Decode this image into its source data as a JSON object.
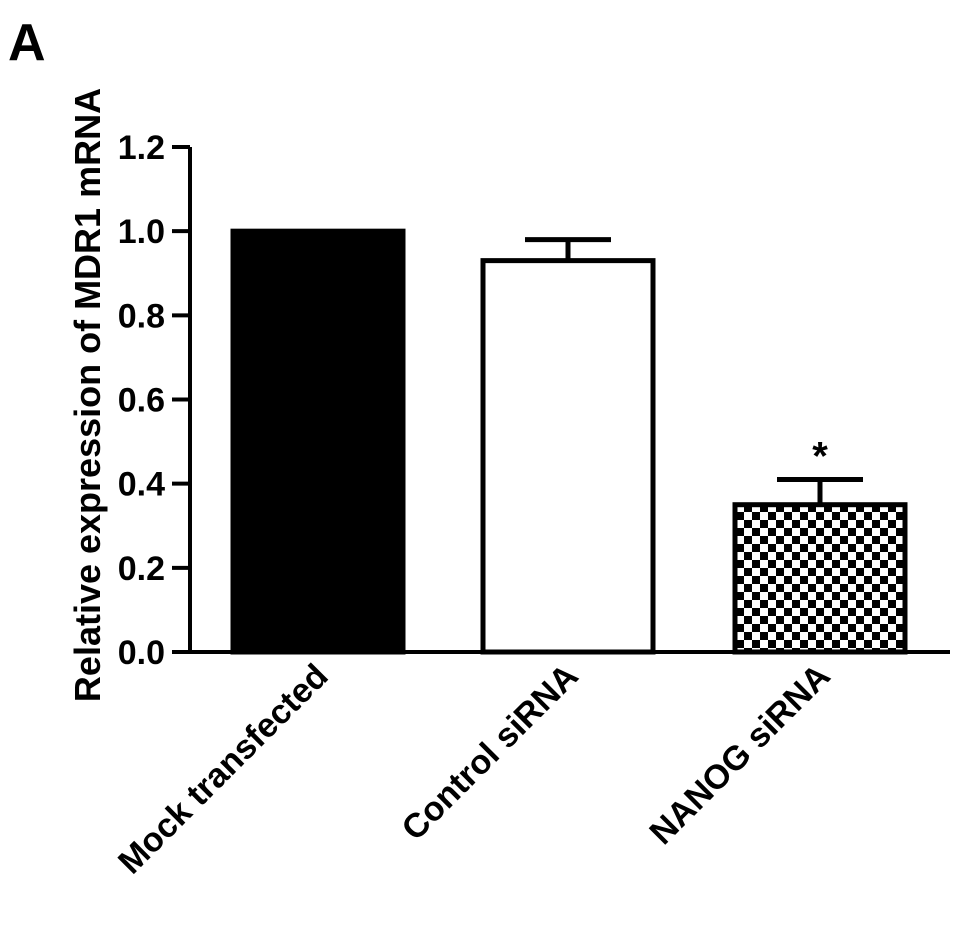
{
  "panel_label": "A",
  "chart_data": {
    "type": "bar",
    "ylabel": "Relative expression of MDR1 mRNA",
    "xlabel": "",
    "ylim": [
      0,
      1.2
    ],
    "yticks": [
      "0.0",
      "0.2",
      "0.4",
      "0.6",
      "0.8",
      "1.0",
      "1.2"
    ],
    "grid": false,
    "categories": [
      "Mock transfected",
      "Control siRNA",
      "NANOG siRNA"
    ],
    "values": [
      1.0,
      0.93,
      0.35
    ],
    "error_upper": [
      0,
      0.98,
      0.41
    ],
    "fills": [
      "solid-black",
      "white",
      "checkerboard"
    ],
    "annotations": [
      {
        "category": "NANOG siRNA",
        "text": "*"
      }
    ]
  }
}
